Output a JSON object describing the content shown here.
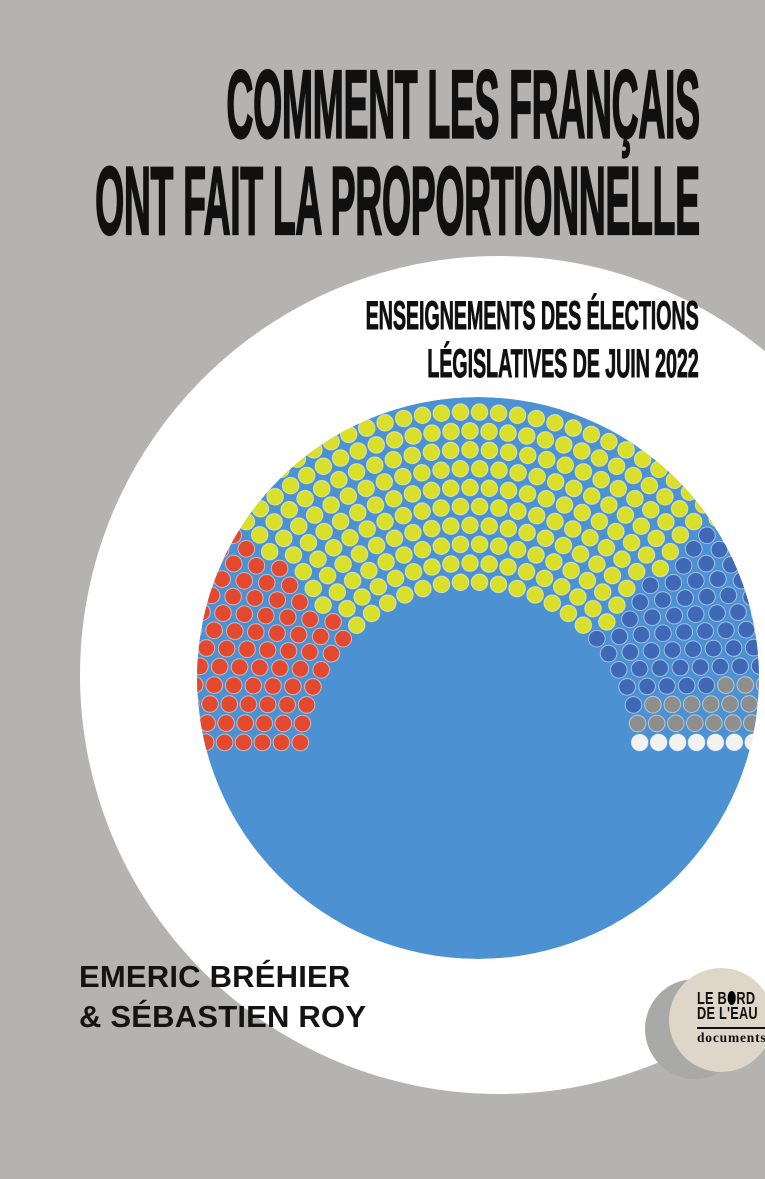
{
  "title": {
    "line1": "COMMENT LES FRANÇAIS",
    "line2": "ONT FAIT LA PROPORTIONNELLE"
  },
  "subtitle": {
    "line1": "ENSEIGNEMENTS DES ÉLECTIONS",
    "line2": "LÉGISLATIVES DE JUIN 2022"
  },
  "authors": {
    "line1": "EMERIC BRÉHIER",
    "line2": "& SÉBASTIEN ROY"
  },
  "publisher": {
    "name_line1": "LE BORD",
    "name_line2": "DE L'EAU",
    "imprint": "documents"
  },
  "colors": {
    "background_gray": "#B4B3B1",
    "outer_circle_white": "#FFFFFF",
    "inner_circle_blue": "#4C92D2",
    "text_black": "#101010",
    "publisher_circle_beige": "#DED6C8",
    "publisher_shadow_gray": "#A9A9A7"
  },
  "chart_data": {
    "type": "parliament-hemicycle",
    "arc_degrees": 180,
    "rows": 10,
    "legend": "none",
    "order": "segments listed left to right across the hemicycle",
    "segments": [
      {
        "label": "red-left-bloc",
        "color": "#E2492E",
        "share": 0.245
      },
      {
        "label": "yellow-centre-bloc",
        "color": "#D9DF2B",
        "share": 0.515
      },
      {
        "label": "blue-right-bloc",
        "color": "#3F68B6",
        "share": 0.155
      },
      {
        "label": "grey-bloc",
        "color": "#8E8E8C",
        "share": 0.055
      },
      {
        "label": "white-bloc",
        "color": "#F2F3F0",
        "share": 0.03
      }
    ]
  }
}
